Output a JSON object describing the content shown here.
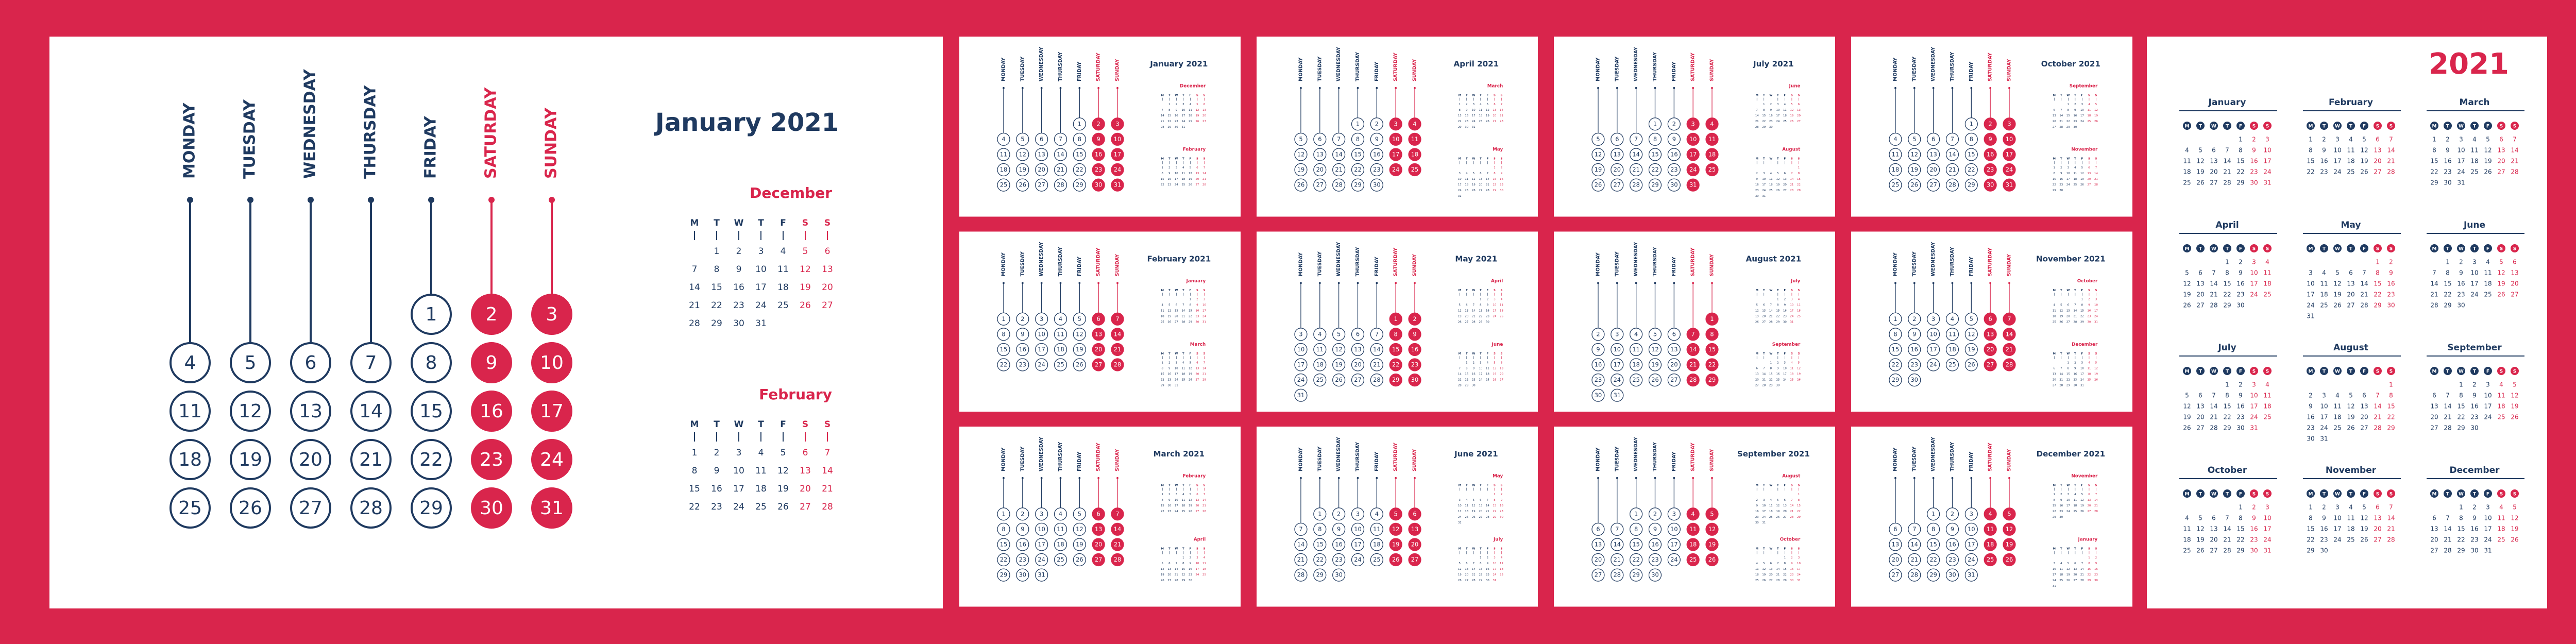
{
  "year": "2021",
  "weekdays": [
    "MONDAY",
    "TUESDAY",
    "WEDNESDAY",
    "THURSDAY",
    "FRIDAY",
    "SATURDAY",
    "SUNDAY"
  ],
  "weekday_letters": [
    "M",
    "T",
    "W",
    "T",
    "F",
    "S",
    "S"
  ],
  "titles": [
    "January 2021",
    "February 2021",
    "March 2021",
    "April 2021",
    "May 2021",
    "June 2021",
    "July 2021",
    "August 2021",
    "September 2021",
    "October 2021",
    "November 2021",
    "December 2021"
  ],
  "months": [
    {
      "name": "December",
      "weeks": [
        [
          null,
          1,
          2,
          3,
          4,
          5,
          6
        ],
        [
          7,
          8,
          9,
          10,
          11,
          12,
          13
        ],
        [
          14,
          15,
          16,
          17,
          18,
          19,
          20
        ],
        [
          21,
          22,
          23,
          24,
          25,
          26,
          27
        ],
        [
          28,
          29,
          30,
          31
        ]
      ]
    },
    {
      "name": "January",
      "weeks": [
        [
          null,
          null,
          null,
          null,
          1,
          2,
          3
        ],
        [
          4,
          5,
          6,
          7,
          8,
          9,
          10
        ],
        [
          11,
          12,
          13,
          14,
          15,
          16,
          17
        ],
        [
          18,
          19,
          20,
          21,
          22,
          23,
          24
        ],
        [
          25,
          26,
          27,
          28,
          29,
          30,
          31
        ]
      ]
    },
    {
      "name": "February",
      "weeks": [
        [
          1,
          2,
          3,
          4,
          5,
          6,
          7
        ],
        [
          8,
          9,
          10,
          11,
          12,
          13,
          14
        ],
        [
          15,
          16,
          17,
          18,
          19,
          20,
          21
        ],
        [
          22,
          23,
          24,
          25,
          26,
          27,
          28
        ]
      ]
    },
    {
      "name": "March",
      "weeks": [
        [
          1,
          2,
          3,
          4,
          5,
          6,
          7
        ],
        [
          8,
          9,
          10,
          11,
          12,
          13,
          14
        ],
        [
          15,
          16,
          17,
          18,
          19,
          20,
          21
        ],
        [
          22,
          23,
          24,
          25,
          26,
          27,
          28
        ],
        [
          29,
          30,
          31
        ]
      ]
    },
    {
      "name": "April",
      "weeks": [
        [
          null,
          null,
          null,
          1,
          2,
          3,
          4
        ],
        [
          5,
          6,
          7,
          8,
          9,
          10,
          11
        ],
        [
          12,
          13,
          14,
          15,
          16,
          17,
          18
        ],
        [
          19,
          20,
          21,
          22,
          23,
          24,
          25
        ],
        [
          26,
          27,
          28,
          29,
          30
        ]
      ]
    },
    {
      "name": "May",
      "weeks": [
        [
          null,
          null,
          null,
          null,
          null,
          1,
          2
        ],
        [
          3,
          4,
          5,
          6,
          7,
          8,
          9
        ],
        [
          10,
          11,
          12,
          13,
          14,
          15,
          16
        ],
        [
          17,
          18,
          19,
          20,
          21,
          22,
          23
        ],
        [
          24,
          25,
          26,
          27,
          28,
          29,
          30
        ],
        [
          31
        ]
      ]
    },
    {
      "name": "June",
      "weeks": [
        [
          null,
          1,
          2,
          3,
          4,
          5,
          6
        ],
        [
          7,
          8,
          9,
          10,
          11,
          12,
          13
        ],
        [
          14,
          15,
          16,
          17,
          18,
          19,
          20
        ],
        [
          21,
          22,
          23,
          24,
          25,
          26,
          27
        ],
        [
          28,
          29,
          30
        ]
      ]
    },
    {
      "name": "July",
      "weeks": [
        [
          null,
          null,
          null,
          1,
          2,
          3,
          4
        ],
        [
          5,
          6,
          7,
          8,
          9,
          10,
          11
        ],
        [
          12,
          13,
          14,
          15,
          16,
          17,
          18
        ],
        [
          19,
          20,
          21,
          22,
          23,
          24,
          25
        ],
        [
          26,
          27,
          28,
          29,
          30,
          31
        ]
      ]
    },
    {
      "name": "August",
      "weeks": [
        [
          null,
          null,
          null,
          null,
          null,
          null,
          1
        ],
        [
          2,
          3,
          4,
          5,
          6,
          7,
          8
        ],
        [
          9,
          10,
          11,
          12,
          13,
          14,
          15
        ],
        [
          16,
          17,
          18,
          19,
          20,
          21,
          22
        ],
        [
          23,
          24,
          25,
          26,
          27,
          28,
          29
        ],
        [
          30,
          31
        ]
      ]
    },
    {
      "name": "September",
      "weeks": [
        [
          null,
          null,
          1,
          2,
          3,
          4,
          5
        ],
        [
          6,
          7,
          8,
          9,
          10,
          11,
          12
        ],
        [
          13,
          14,
          15,
          16,
          17,
          18,
          19
        ],
        [
          20,
          21,
          22,
          23,
          24,
          25,
          26
        ],
        [
          27,
          28,
          29,
          30
        ]
      ]
    },
    {
      "name": "October",
      "weeks": [
        [
          null,
          null,
          null,
          null,
          1,
          2,
          3
        ],
        [
          4,
          5,
          6,
          7,
          8,
          9,
          10
        ],
        [
          11,
          12,
          13,
          14,
          15,
          16,
          17
        ],
        [
          18,
          19,
          20,
          21,
          22,
          23,
          24
        ],
        [
          25,
          26,
          27,
          28,
          29,
          30,
          31
        ]
      ]
    },
    {
      "name": "November",
      "weeks": [
        [
          1,
          2,
          3,
          4,
          5,
          6,
          7
        ],
        [
          8,
          9,
          10,
          11,
          12,
          13,
          14
        ],
        [
          15,
          16,
          17,
          18,
          19,
          20,
          21
        ],
        [
          22,
          23,
          24,
          25,
          26,
          27,
          28
        ],
        [
          29,
          30
        ]
      ]
    },
    {
      "name": "December",
      "weeks": [
        [
          null,
          null,
          1,
          2,
          3,
          4,
          5
        ],
        [
          6,
          7,
          8,
          9,
          10,
          11,
          12
        ],
        [
          13,
          14,
          15,
          16,
          17,
          18,
          19
        ],
        [
          20,
          21,
          22,
          23,
          24,
          25,
          26
        ],
        [
          27,
          28,
          29,
          30,
          31
        ]
      ]
    },
    {
      "name": "January",
      "weeks": [
        [
          null,
          null,
          null,
          null,
          null,
          1,
          2
        ],
        [
          3,
          4,
          5,
          6,
          7,
          8,
          9
        ],
        [
          10,
          11,
          12,
          13,
          14,
          15,
          16
        ],
        [
          17,
          18,
          19,
          20,
          21,
          22,
          23
        ],
        [
          24,
          25,
          26,
          27,
          28,
          29,
          30
        ],
        [
          31
        ]
      ]
    }
  ]
}
